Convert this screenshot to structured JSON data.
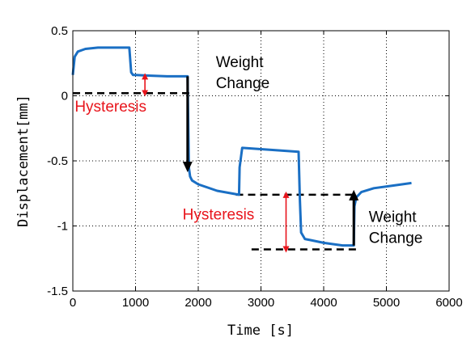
{
  "chart_data": {
    "type": "line",
    "xlabel": "Time [s]",
    "ylabel": "Displacement[mm]",
    "xlim": [
      0,
      6000
    ],
    "ylim": [
      -1.5,
      0.5
    ],
    "xticks": [
      0,
      1000,
      2000,
      3000,
      4000,
      5000,
      6000
    ],
    "yticks": [
      0.5,
      0,
      -0.5,
      -1,
      -1.5
    ],
    "xtick_labels": [
      "0",
      "1000",
      "2000",
      "3000",
      "4000",
      "5000",
      "6000"
    ],
    "ytick_labels": [
      "0.5",
      "0",
      "-0.5",
      "-1",
      "-1.5"
    ],
    "grid": true,
    "series": [
      {
        "color": "#1a6fc4",
        "x": [
          0,
          30,
          80,
          200,
          400,
          600,
          900,
          930,
          960,
          1000,
          1200,
          1500,
          1830,
          1850,
          1870,
          1900,
          2000,
          2300,
          2650,
          2660,
          2700,
          3000,
          3300,
          3600,
          3620,
          3640,
          3700,
          4000,
          4300,
          4480,
          4490,
          4520,
          4600,
          4800,
          5100,
          5400
        ],
        "y": [
          0.16,
          0.3,
          0.34,
          0.36,
          0.37,
          0.37,
          0.37,
          0.18,
          0.16,
          0.16,
          0.155,
          0.15,
          0.15,
          -0.55,
          -0.62,
          -0.65,
          -0.68,
          -0.73,
          -0.76,
          -0.55,
          -0.4,
          -0.41,
          -0.42,
          -0.43,
          -0.8,
          -1.05,
          -1.1,
          -1.13,
          -1.15,
          -1.15,
          -0.85,
          -0.78,
          -0.74,
          -0.71,
          -0.69,
          -0.67
        ]
      }
    ],
    "reference_lines": [
      {
        "y": 0.02,
        "x": [
          0,
          1900
        ],
        "style": "dashed",
        "color": "#000000"
      },
      {
        "y": -0.76,
        "x": [
          2600,
          4500
        ],
        "style": "dashed",
        "color": "#000000"
      },
      {
        "y": -1.18,
        "x": [
          2850,
          4580
        ],
        "style": "dashed",
        "color": "#000000"
      }
    ],
    "arrows": [
      {
        "kind": "double",
        "color": "#e8141b",
        "x": 1150,
        "y1": 0.02,
        "y2": 0.15
      },
      {
        "kind": "single",
        "color": "#000000",
        "x": 1830,
        "y1": 0.15,
        "y2": -0.55
      },
      {
        "kind": "double",
        "color": "#e8141b",
        "x": 3400,
        "y1": -0.76,
        "y2": -1.18
      },
      {
        "kind": "single",
        "color": "#000000",
        "x": 4480,
        "y1": -1.15,
        "y2": -0.76
      }
    ],
    "annotations": [
      {
        "text": "Hysteresis",
        "color": "#e8141b",
        "x": 30,
        "y": -0.12,
        "anchor": "start"
      },
      {
        "text": "Weight",
        "color": "#000000",
        "x": 2280,
        "y": 0.22,
        "anchor": "start"
      },
      {
        "text": "Change",
        "color": "#000000",
        "x": 2280,
        "y": 0.06,
        "anchor": "start"
      },
      {
        "text": "Hysteresis",
        "color": "#e8141b",
        "x": 1750,
        "y": -0.95,
        "anchor": "start"
      },
      {
        "text": "Weight",
        "color": "#000000",
        "x": 4720,
        "y": -0.97,
        "anchor": "start"
      },
      {
        "text": "Change",
        "color": "#000000",
        "x": 4720,
        "y": -1.13,
        "anchor": "start"
      }
    ]
  }
}
